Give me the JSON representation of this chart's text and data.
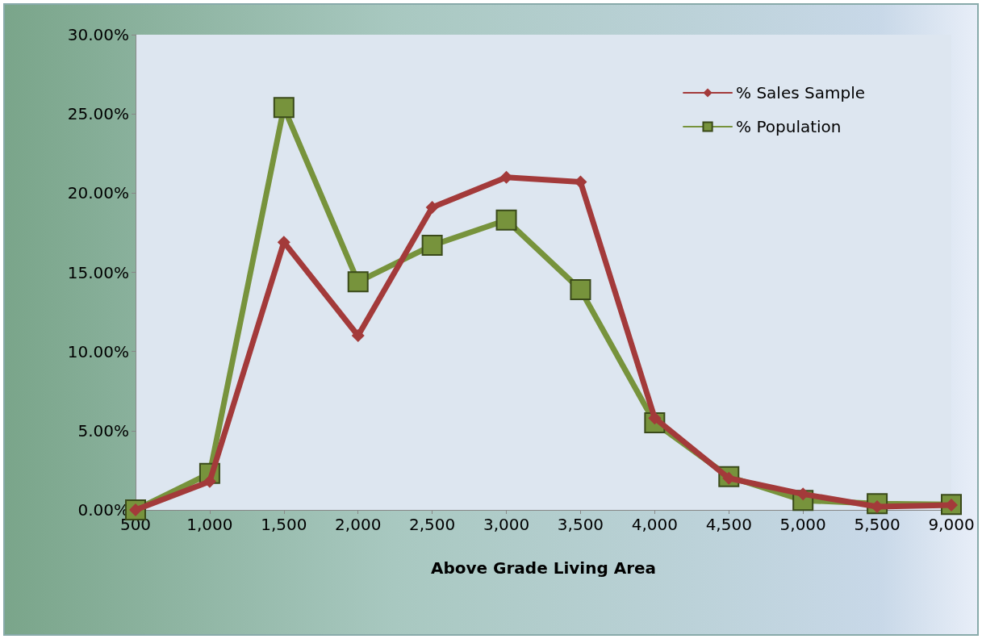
{
  "chart_data": {
    "type": "line",
    "xlabel": "Above Grade Living Area",
    "categories": [
      "500",
      "1,000",
      "1,500",
      "2,000",
      "2,500",
      "3,000",
      "3,500",
      "4,000",
      "4,500",
      "5,000",
      "5,500",
      "9,000"
    ],
    "series": [
      {
        "name": "% Sales Sample",
        "color": "#a33a3a",
        "marker": "diamond",
        "values": [
          0,
          1.8,
          16.9,
          11.0,
          19.1,
          21.0,
          20.7,
          5.8,
          2.0,
          1.0,
          0.2,
          0.3
        ]
      },
      {
        "name": "% Population",
        "color": "#77933c",
        "marker": "square",
        "values": [
          0,
          2.3,
          25.4,
          14.4,
          16.7,
          18.3,
          13.9,
          5.5,
          2.1,
          0.6,
          0.4,
          0.35
        ]
      }
    ],
    "ylim": [
      0,
      30
    ],
    "yticks": [
      {
        "value": 0,
        "label": "0.00%"
      },
      {
        "value": 5,
        "label": "5.00%"
      },
      {
        "value": 10,
        "label": "10.00%"
      },
      {
        "value": 15,
        "label": "15.00%"
      },
      {
        "value": 20,
        "label": "20.00%"
      },
      {
        "value": 25,
        "label": "25.00%"
      },
      {
        "value": 30,
        "label": "30.00%"
      }
    ],
    "legend": "top right",
    "line_style": "solid"
  }
}
